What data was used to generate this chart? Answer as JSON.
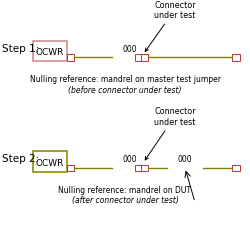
{
  "bg_color": "#ffffff",
  "step1_label": "Step 1:",
  "step2_label": "Step 2:",
  "ocwr_label": "OCWR",
  "ocwr_border_color1": "#d09090",
  "ocwr_border_color2": "#909000",
  "line_color": "#808000",
  "connector_color": "#c03030",
  "connector_label": "Connector\nunder test",
  "null_ref1_line1": "Nulling reference: mandrel on master test jumper",
  "null_ref1_line2": "(before connector under test)",
  "null_ref2_line1": "Nulling reference: mandrel on DUT",
  "null_ref2_line2": "(after connector under test)",
  "text_color": "#000000",
  "mandrel_label": "000",
  "font_size_step": 7.5,
  "font_size_ref": 5.5,
  "font_size_conn": 5.8,
  "font_size_ocwr": 6.5,
  "font_size_mandrel": 5.5
}
